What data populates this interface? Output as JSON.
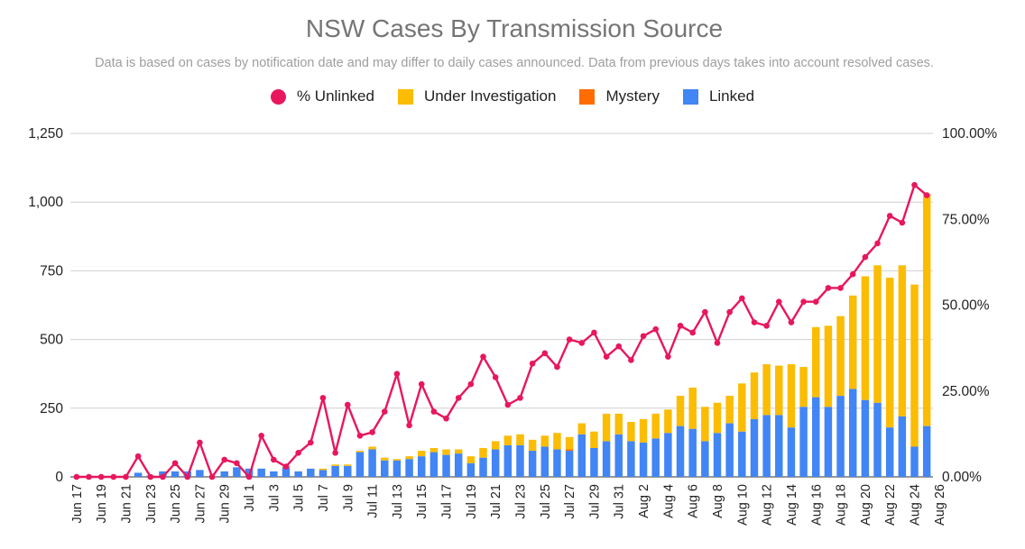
{
  "chart_data": {
    "type": "bar",
    "title": "NSW Cases By Transmission Source",
    "subtitle": "Data is based on cases by notification date and may differ to daily cases announced. Data from previous days takes into account resolved cases.",
    "legend_position": "top",
    "y_left": {
      "ticks": [
        "0",
        "250",
        "500",
        "750",
        "1,000",
        "1,250"
      ],
      "ylim": [
        0,
        1250
      ]
    },
    "y_right": {
      "ticks": [
        "0.00%",
        "25.00%",
        "50.00%",
        "75.00%",
        "100.00%"
      ],
      "ylim": [
        0,
        100
      ]
    },
    "x_tick_labels": [
      "Jun 17",
      "Jun 19",
      "Jun 21",
      "Jun 23",
      "Jun 25",
      "Jun 27",
      "Jun 29",
      "Jul 1",
      "Jul 3",
      "Jul 5",
      "Jul 7",
      "Jul 9",
      "Jul 11",
      "Jul 13",
      "Jul 15",
      "Jul 17",
      "Jul 19",
      "Jul 21",
      "Jul 23",
      "Jul 25",
      "Jul 27",
      "Jul 29",
      "Jul 31",
      "Aug 2",
      "Aug 4",
      "Aug 6",
      "Aug 8",
      "Aug 10",
      "Aug 12",
      "Aug 14",
      "Aug 16",
      "Aug 18",
      "Aug 20",
      "Aug 22",
      "Aug 24",
      "Aug 26"
    ],
    "grid": true,
    "series": [
      {
        "name": "% Unlinked",
        "type": "line",
        "axis": "right",
        "color": "#e8175d",
        "values": [
          0,
          0,
          0,
          0,
          0,
          6,
          0,
          0,
          4,
          0,
          10,
          0,
          5,
          4,
          0,
          12,
          5,
          3,
          7,
          10,
          23,
          7,
          21,
          12,
          13,
          19,
          30,
          15,
          27,
          19,
          17,
          23,
          27,
          35,
          29,
          21,
          23,
          33,
          36,
          32,
          40,
          39,
          42,
          35,
          38,
          34,
          41,
          43,
          35,
          44,
          42,
          48,
          39,
          48,
          52,
          45,
          44,
          51,
          45,
          51,
          51,
          55,
          55,
          59,
          64,
          68,
          76,
          74,
          85,
          82
        ]
      },
      {
        "name": "Under Investigation",
        "type": "bar",
        "stack": "cases",
        "color": "#fbbc04",
        "values": [
          0,
          0,
          0,
          0,
          0,
          0,
          0,
          0,
          0,
          0,
          0,
          0,
          0,
          0,
          0,
          0,
          0,
          3,
          0,
          0,
          5,
          5,
          5,
          5,
          10,
          10,
          5,
          10,
          20,
          15,
          20,
          15,
          25,
          35,
          30,
          35,
          40,
          40,
          40,
          60,
          45,
          40,
          60,
          100,
          75,
          70,
          85,
          90,
          85,
          110,
          150,
          125,
          110,
          100,
          175,
          170,
          185,
          180,
          230,
          145,
          255,
          295,
          290,
          340,
          450,
          500,
          545,
          550,
          590,
          845
        ]
      },
      {
        "name": "Mystery",
        "type": "bar",
        "stack": "cases",
        "color": "#ff6d01",
        "values": [
          0,
          0,
          0,
          0,
          0,
          0,
          0,
          0,
          0,
          0,
          0,
          0,
          0,
          0,
          0,
          0,
          0,
          0,
          0,
          0,
          0,
          0,
          0,
          0,
          0,
          0,
          0,
          0,
          0,
          0,
          0,
          0,
          0,
          0,
          0,
          0,
          0,
          0,
          0,
          0,
          5,
          0,
          0,
          0,
          0,
          0,
          0,
          0,
          0,
          0,
          0,
          0,
          0,
          0,
          0,
          0,
          0,
          0,
          0,
          0,
          0,
          0,
          0,
          0,
          0,
          0,
          0,
          0,
          0,
          0
        ]
      },
      {
        "name": "Linked",
        "type": "bar",
        "stack": "cases",
        "color": "#4285f4",
        "values": [
          0,
          0,
          0,
          0,
          0,
          15,
          5,
          20,
          20,
          20,
          25,
          0,
          20,
          35,
          30,
          30,
          20,
          35,
          20,
          30,
          25,
          40,
          40,
          90,
          100,
          60,
          60,
          65,
          75,
          90,
          80,
          85,
          50,
          70,
          100,
          115,
          115,
          95,
          110,
          100,
          95,
          155,
          105,
          130,
          155,
          130,
          125,
          140,
          160,
          185,
          175,
          130,
          160,
          195,
          165,
          210,
          225,
          225,
          180,
          255,
          290,
          255,
          295,
          320,
          280,
          270,
          180,
          220,
          110,
          185
        ]
      }
    ]
  }
}
